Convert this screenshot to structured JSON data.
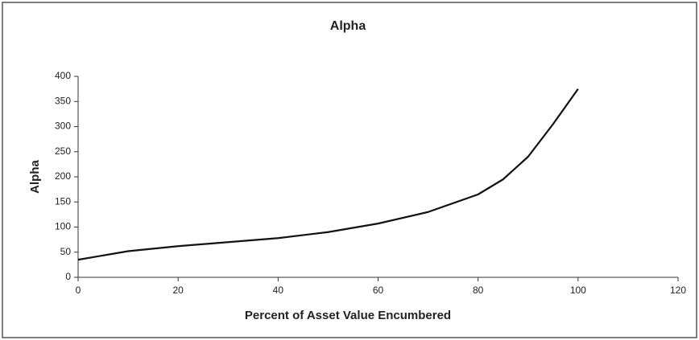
{
  "chart_data": {
    "type": "line",
    "title": "Alpha",
    "xlabel": "Percent of Asset Value Encumbered",
    "ylabel": "Alpha",
    "x": [
      0,
      10,
      20,
      30,
      40,
      50,
      60,
      70,
      80,
      85,
      90,
      95,
      100
    ],
    "series": [
      {
        "name": "Alpha",
        "color": "#111111",
        "values": [
          35,
          52,
          62,
          70,
          78,
          90,
          107,
          130,
          165,
          195,
          240,
          305,
          375
        ]
      }
    ],
    "xlim": [
      0,
      120
    ],
    "xticks": [
      0,
      20,
      40,
      60,
      80,
      100,
      120
    ],
    "ylim": [
      0,
      400
    ],
    "yticks": [
      0,
      50,
      100,
      150,
      200,
      250,
      300,
      350,
      400
    ],
    "grid": false,
    "legend": false
  }
}
